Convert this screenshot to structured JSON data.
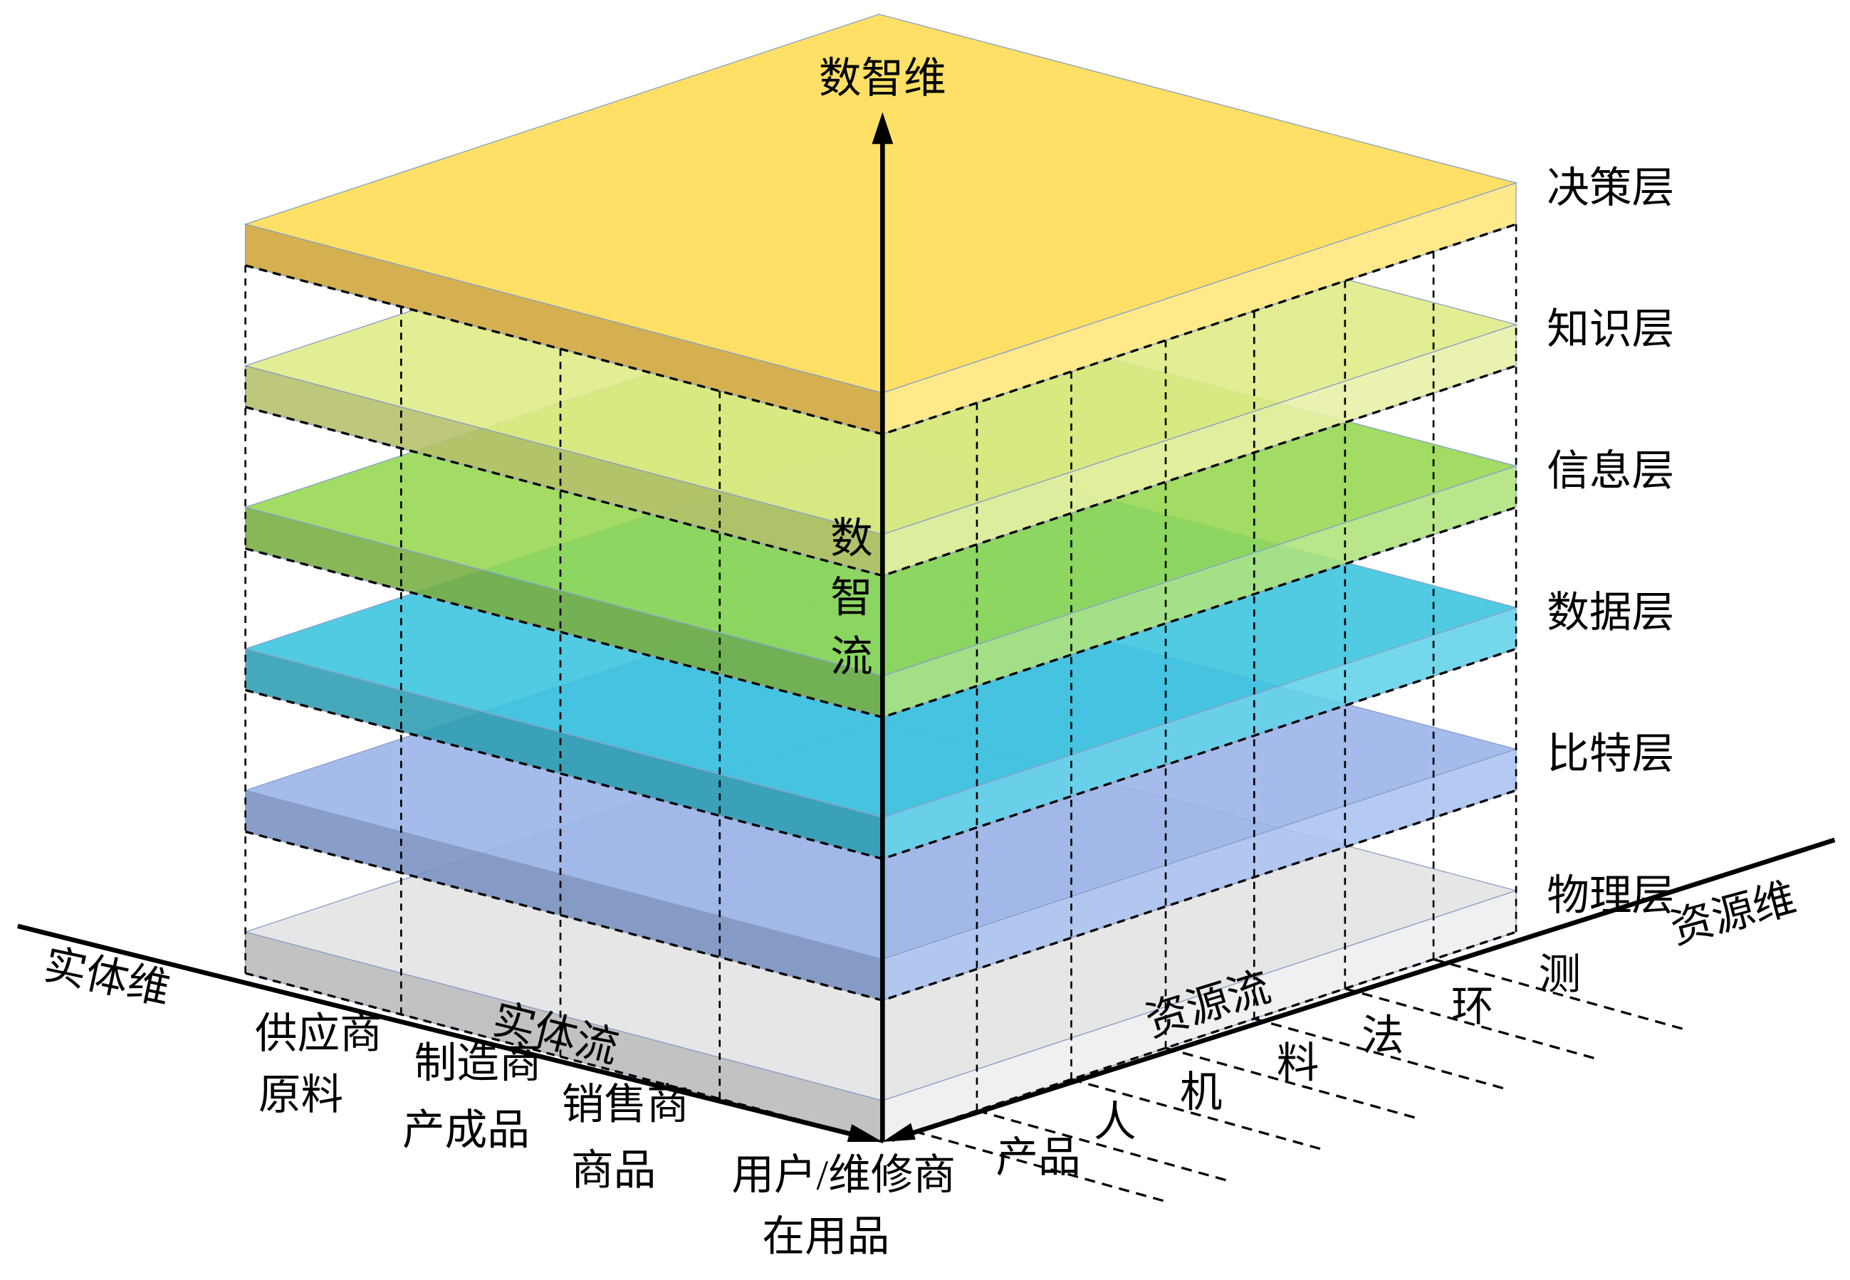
{
  "axes": {
    "vertical": "数智维",
    "entity": "实体维",
    "resource": "资源维"
  },
  "flows": {
    "vertical": "数智流",
    "entity": "实体流",
    "resource": "资源流"
  },
  "layers": [
    "决策层",
    "知识层",
    "信息层",
    "数据层",
    "比特层",
    "物理层"
  ],
  "entities": [
    {
      "name": "供应商",
      "item": "原料"
    },
    {
      "name": "制造商",
      "item": "产成品"
    },
    {
      "name": "销售商",
      "item": "商品"
    },
    {
      "name": "用户/维修商",
      "item": "在用品"
    }
  ],
  "resources": [
    "产品",
    "人",
    "机",
    "料",
    "法",
    "环",
    "测"
  ]
}
